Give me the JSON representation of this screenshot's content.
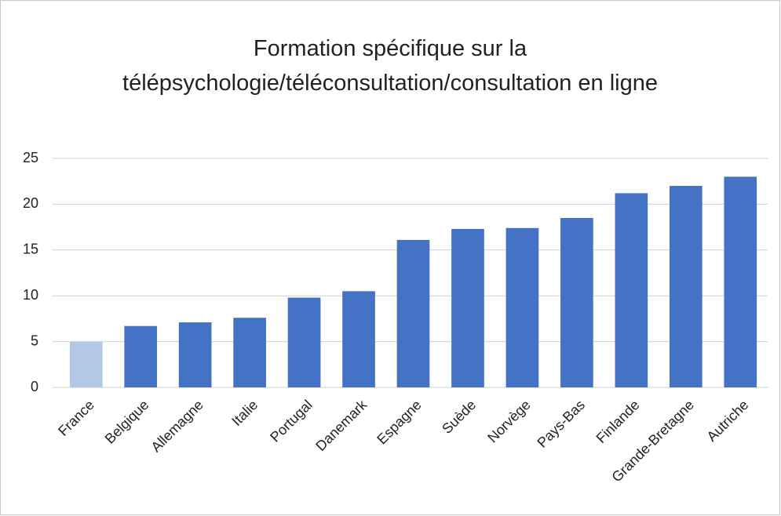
{
  "chart_data": {
    "type": "bar",
    "title": "Formation spécifique sur la télépsychologie/téléconsultation/consultation en ligne",
    "categories": [
      "France",
      "Belgique",
      "Allemagne",
      "Italie",
      "Portugal",
      "Danemark",
      "Espagne",
      "Suède",
      "Norvège",
      "Pays-Bas",
      "Finlande",
      "Grande-Bretagne",
      "Autriche"
    ],
    "values": [
      5,
      6.7,
      7.1,
      7.6,
      9.8,
      10.5,
      16.1,
      17.3,
      17.4,
      18.5,
      21.2,
      22,
      23
    ],
    "colors": [
      "#b4c7e7",
      "#4472c4",
      "#4472c4",
      "#4472c4",
      "#4472c4",
      "#4472c4",
      "#4472c4",
      "#4472c4",
      "#4472c4",
      "#4472c4",
      "#4472c4",
      "#4472c4",
      "#4472c4"
    ],
    "ylim": [
      0,
      25
    ],
    "yticks": [
      0,
      5,
      10,
      15,
      20,
      25
    ],
    "grid": true
  }
}
